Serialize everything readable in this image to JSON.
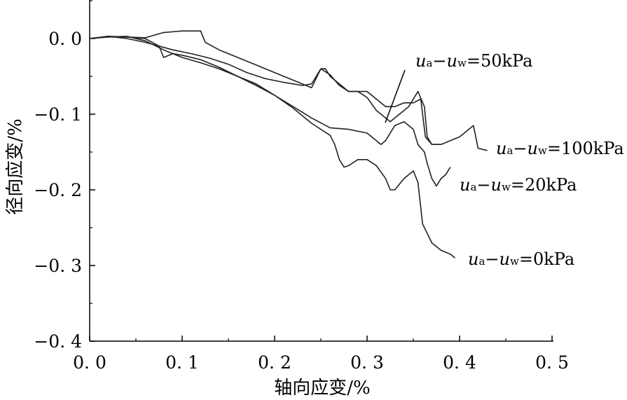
{
  "chart_data": {
    "type": "line",
    "title": "",
    "xlabel": "轴向应变/%",
    "ylabel": "径向应变/%",
    "xlim": [
      0,
      0.5
    ],
    "ylim": [
      -0.4,
      0.05
    ],
    "x_ticks": [
      {
        "value": 0.0,
        "label": "0. 0"
      },
      {
        "value": 0.1,
        "label": "0. 1"
      },
      {
        "value": 0.2,
        "label": "0. 2"
      },
      {
        "value": 0.3,
        "label": "0. 3"
      },
      {
        "value": 0.4,
        "label": "0. 4"
      },
      {
        "value": 0.5,
        "label": "0. 5"
      }
    ],
    "y_ticks": [
      {
        "value": 0.0,
        "label": "0. 0"
      },
      {
        "value": -0.1,
        "label": "−0. 1"
      },
      {
        "value": -0.2,
        "label": "−0. 2"
      },
      {
        "value": -0.3,
        "label": "−0. 3"
      },
      {
        "value": -0.4,
        "label": "−0. 4"
      }
    ],
    "grid": false,
    "series": [
      {
        "name": "ua−uw=50kPa",
        "annotation": {
          "u": "u",
          "a": "a",
          "minus": "−",
          "w": "w",
          "value": "=50kPa"
        },
        "points": [
          [
            0,
            0
          ],
          [
            0.02,
            0.003
          ],
          [
            0.04,
            0
          ],
          [
            0.06,
            -0.005
          ],
          [
            0.075,
            -0.01
          ],
          [
            0.09,
            -0.015
          ],
          [
            0.11,
            -0.02
          ],
          [
            0.13,
            -0.026
          ],
          [
            0.15,
            -0.034
          ],
          [
            0.17,
            -0.045
          ],
          [
            0.19,
            -0.053
          ],
          [
            0.21,
            -0.058
          ],
          [
            0.23,
            -0.062
          ],
          [
            0.24,
            -0.06
          ],
          [
            0.25,
            -0.04
          ],
          [
            0.26,
            -0.048
          ],
          [
            0.27,
            -0.062
          ],
          [
            0.28,
            -0.07
          ],
          [
            0.29,
            -0.07
          ],
          [
            0.3,
            -0.078
          ],
          [
            0.31,
            -0.095
          ],
          [
            0.32,
            -0.105
          ],
          [
            0.325,
            -0.11
          ],
          [
            0.335,
            -0.1
          ],
          [
            0.345,
            -0.09
          ],
          [
            0.355,
            -0.07
          ],
          [
            0.362,
            -0.09
          ],
          [
            0.365,
            -0.13
          ],
          [
            0.37,
            -0.14
          ],
          [
            0.38,
            -0.14
          ]
        ]
      },
      {
        "name": "ua−uw=100kPa",
        "annotation": {
          "u": "u",
          "a": "a",
          "minus": "−",
          "w": "w",
          "value": "=100kPa"
        },
        "points": [
          [
            0,
            0
          ],
          [
            0.02,
            0.003
          ],
          [
            0.04,
            0.002
          ],
          [
            0.06,
            0.001
          ],
          [
            0.08,
            0.008
          ],
          [
            0.1,
            0.01
          ],
          [
            0.12,
            0.01
          ],
          [
            0.125,
            -0.005
          ],
          [
            0.14,
            -0.015
          ],
          [
            0.16,
            -0.025
          ],
          [
            0.18,
            -0.035
          ],
          [
            0.2,
            -0.045
          ],
          [
            0.22,
            -0.055
          ],
          [
            0.24,
            -0.065
          ],
          [
            0.25,
            -0.04
          ],
          [
            0.255,
            -0.04
          ],
          [
            0.26,
            -0.05
          ],
          [
            0.27,
            -0.06
          ],
          [
            0.28,
            -0.07
          ],
          [
            0.29,
            -0.07
          ],
          [
            0.3,
            -0.07
          ],
          [
            0.31,
            -0.08
          ],
          [
            0.32,
            -0.09
          ],
          [
            0.33,
            -0.09
          ],
          [
            0.34,
            -0.085
          ],
          [
            0.35,
            -0.085
          ],
          [
            0.358,
            -0.08
          ],
          [
            0.363,
            -0.13
          ],
          [
            0.37,
            -0.14
          ],
          [
            0.38,
            -0.14
          ],
          [
            0.39,
            -0.135
          ],
          [
            0.4,
            -0.13
          ],
          [
            0.41,
            -0.12
          ],
          [
            0.415,
            -0.115
          ],
          [
            0.42,
            -0.145
          ],
          [
            0.43,
            -0.148
          ]
        ]
      },
      {
        "name": "ua−uw=20kPa",
        "annotation": {
          "u": "u",
          "a": "a",
          "minus": "−",
          "w": "w",
          "value": "=20kPa"
        },
        "points": [
          [
            0,
            0
          ],
          [
            0.02,
            0.002
          ],
          [
            0.04,
            0.003
          ],
          [
            0.06,
            -0.003
          ],
          [
            0.08,
            -0.015
          ],
          [
            0.1,
            -0.025
          ],
          [
            0.12,
            -0.032
          ],
          [
            0.14,
            -0.04
          ],
          [
            0.16,
            -0.05
          ],
          [
            0.18,
            -0.062
          ],
          [
            0.2,
            -0.075
          ],
          [
            0.22,
            -0.09
          ],
          [
            0.24,
            -0.105
          ],
          [
            0.26,
            -0.118
          ],
          [
            0.28,
            -0.12
          ],
          [
            0.3,
            -0.125
          ],
          [
            0.31,
            -0.135
          ],
          [
            0.315,
            -0.14
          ],
          [
            0.32,
            -0.135
          ],
          [
            0.33,
            -0.115
          ],
          [
            0.34,
            -0.11
          ],
          [
            0.35,
            -0.12
          ],
          [
            0.355,
            -0.14
          ],
          [
            0.362,
            -0.15
          ],
          [
            0.365,
            -0.165
          ],
          [
            0.37,
            -0.185
          ],
          [
            0.375,
            -0.195
          ],
          [
            0.38,
            -0.185
          ],
          [
            0.385,
            -0.18
          ],
          [
            0.39,
            -0.17
          ]
        ]
      },
      {
        "name": "ua−uw=0kPa",
        "annotation": {
          "u": "u",
          "a": "a",
          "minus": "−",
          "w": "w",
          "value": "=0kPa"
        },
        "points": [
          [
            0,
            0
          ],
          [
            0.02,
            0.002
          ],
          [
            0.04,
            0.002
          ],
          [
            0.06,
            0
          ],
          [
            0.075,
            -0.01
          ],
          [
            0.08,
            -0.025
          ],
          [
            0.09,
            -0.02
          ],
          [
            0.1,
            -0.022
          ],
          [
            0.12,
            -0.028
          ],
          [
            0.14,
            -0.038
          ],
          [
            0.16,
            -0.05
          ],
          [
            0.18,
            -0.06
          ],
          [
            0.2,
            -0.075
          ],
          [
            0.22,
            -0.092
          ],
          [
            0.24,
            -0.112
          ],
          [
            0.26,
            -0.128
          ],
          [
            0.265,
            -0.14
          ],
          [
            0.27,
            -0.16
          ],
          [
            0.275,
            -0.17
          ],
          [
            0.28,
            -0.168
          ],
          [
            0.29,
            -0.16
          ],
          [
            0.3,
            -0.16
          ],
          [
            0.31,
            -0.168
          ],
          [
            0.32,
            -0.185
          ],
          [
            0.325,
            -0.2
          ],
          [
            0.33,
            -0.2
          ],
          [
            0.34,
            -0.185
          ],
          [
            0.35,
            -0.175
          ],
          [
            0.355,
            -0.19
          ],
          [
            0.36,
            -0.245
          ],
          [
            0.37,
            -0.27
          ],
          [
            0.38,
            -0.28
          ],
          [
            0.39,
            -0.285
          ],
          [
            0.395,
            -0.29
          ]
        ]
      }
    ]
  }
}
